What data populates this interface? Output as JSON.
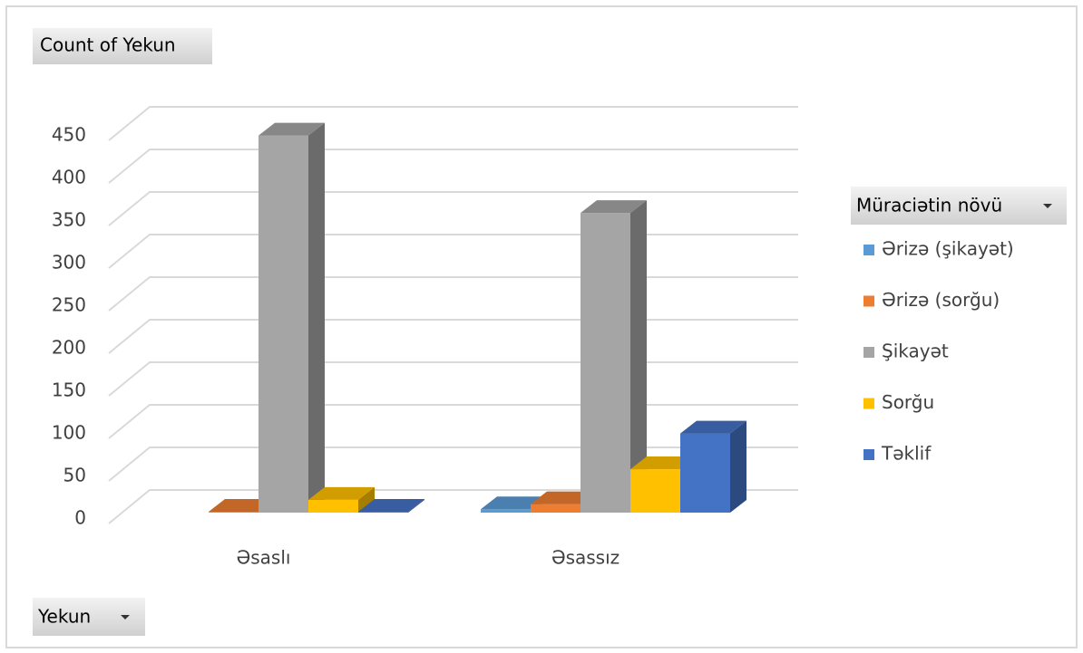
{
  "chart_data": {
    "type": "bar3d",
    "title": "Count of Yekun",
    "legend_title": "Müraciətin növü",
    "x_field": "Yekun",
    "categories": [
      "Əsaslı",
      "Əsassız"
    ],
    "series": [
      {
        "name": "Ərizə (şikayət)",
        "color": "#5b9bd5",
        "values": [
          null,
          4
        ]
      },
      {
        "name": "Ərizə (sorğu)",
        "color": "#ed7d31",
        "values": [
          1,
          10
        ]
      },
      {
        "name": "Şikayət",
        "color": "#a5a5a5",
        "values": [
          443,
          352
        ]
      },
      {
        "name": "Sorğu",
        "color": "#ffc000",
        "values": [
          15,
          51
        ]
      },
      {
        "name": "Təklif",
        "color": "#4472c4",
        "values": [
          1,
          93
        ]
      }
    ],
    "ylim": [
      0,
      450
    ],
    "yticks": [
      0,
      50,
      100,
      150,
      200,
      250,
      300,
      350,
      400,
      450
    ],
    "grid": true,
    "legend": "right"
  }
}
